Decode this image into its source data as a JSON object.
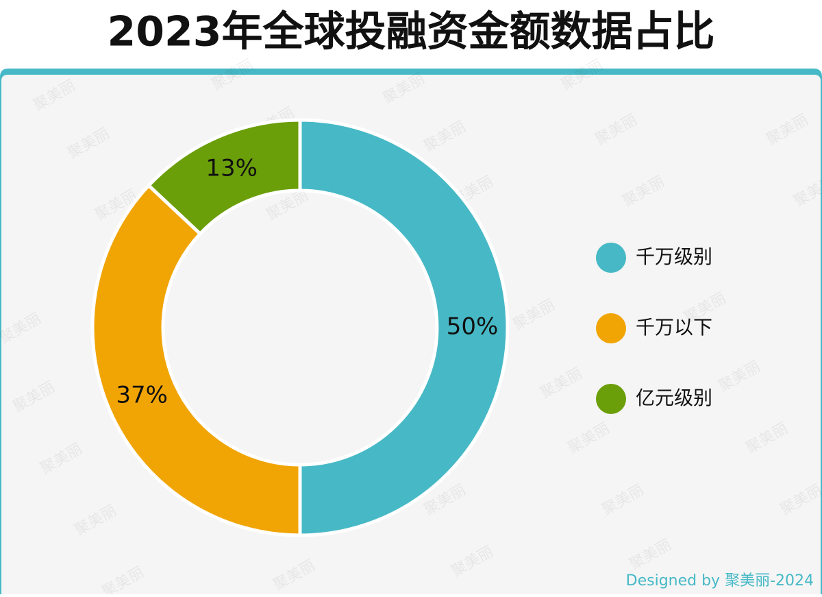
{
  "chart_data": {
    "type": "donut",
    "title": "2023年全球投融资金额数据占比",
    "categories": [
      "千万级别",
      "千万以下",
      "亿元级别"
    ],
    "values": [
      50,
      37,
      13
    ],
    "value_labels": [
      "50%",
      "37%",
      "13%"
    ],
    "colors": [
      "#47b9c6",
      "#f1a505",
      "#6b9f0a"
    ],
    "footer": "Designed by 聚美丽-2024",
    "watermark": "聚美丽"
  }
}
